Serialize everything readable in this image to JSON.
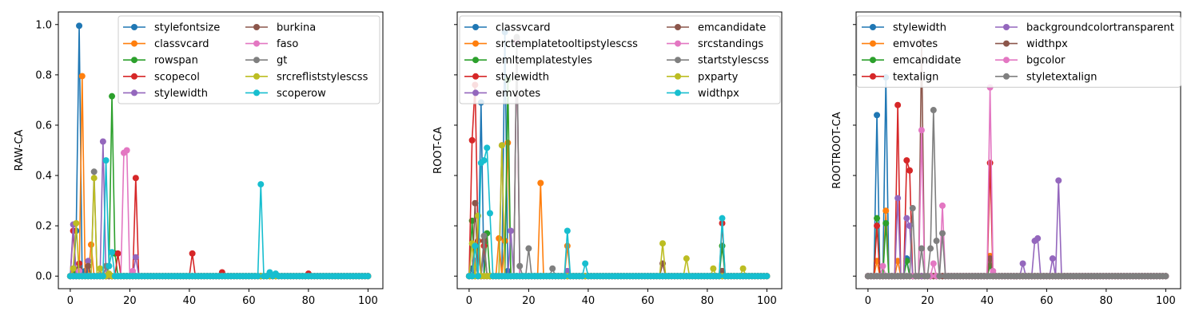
{
  "colors": [
    "#1f77b4",
    "#ff7f0e",
    "#2ca02c",
    "#d62728",
    "#9467bd",
    "#8c564b",
    "#e377c2",
    "#7f7f7f",
    "#bcbd22",
    "#17becf"
  ],
  "chart_data": [
    {
      "type": "line",
      "ylabel": "RAW-CA",
      "xlim": [
        -4,
        105
      ],
      "ylim": [
        -0.05,
        1.05
      ],
      "xticks": [
        0,
        20,
        40,
        60,
        80,
        100
      ],
      "yticks": [
        0.0,
        0.2,
        0.4,
        0.6,
        0.8,
        1.0
      ],
      "ytick_labels": [
        "0.0",
        "0.2",
        "0.4",
        "0.6",
        "0.8",
        "1.0"
      ],
      "legend_loc": "upper-right",
      "legend_cols": 2,
      "series": [
        {
          "name": "stylefontsize",
          "peaks": [
            [
              2,
              0.18
            ],
            [
              3,
              0.995
            ],
            [
              5,
              0.02
            ]
          ]
        },
        {
          "name": "classvcard",
          "peaks": [
            [
              1,
              0.02
            ],
            [
              4,
              0.795
            ],
            [
              7,
              0.125
            ]
          ]
        },
        {
          "name": "rowspan",
          "peaks": [
            [
              2,
              0.02
            ],
            [
              13,
              0.04
            ],
            [
              14,
              0.715
            ],
            [
              15,
              0.09
            ]
          ]
        },
        {
          "name": "scopecol",
          "peaks": [
            [
              1,
              0.18
            ],
            [
              3,
              0.05
            ],
            [
              16,
              0.09
            ],
            [
              22,
              0.39
            ],
            [
              41,
              0.09
            ],
            [
              51,
              0.015
            ],
            [
              80,
              0.01
            ]
          ]
        },
        {
          "name": "stylewidth",
          "peaks": [
            [
              1,
              0.205
            ],
            [
              6,
              0.06
            ],
            [
              11,
              0.535
            ],
            [
              22,
              0.075
            ]
          ]
        },
        {
          "name": "burkina",
          "peaks": [
            [
              3,
              0.03
            ],
            [
              6,
              0.04
            ]
          ]
        },
        {
          "name": "faso",
          "peaks": [
            [
              3,
              0.02
            ],
            [
              18,
              0.49
            ],
            [
              19,
              0.5
            ],
            [
              21,
              0.02
            ]
          ]
        },
        {
          "name": "gt",
          "peaks": [
            [
              8,
              0.415
            ],
            [
              12,
              0.04
            ]
          ]
        },
        {
          "name": "srcrefliststylescss",
          "peaks": [
            [
              1,
              0.03
            ],
            [
              2,
              0.21
            ],
            [
              8,
              0.39
            ],
            [
              10,
              0.03
            ],
            [
              13,
              0.01
            ]
          ]
        },
        {
          "name": "scoperow",
          "peaks": [
            [
              12,
              0.46
            ],
            [
              13,
              0.04
            ],
            [
              14,
              0.095
            ],
            [
              64,
              0.365
            ],
            [
              67,
              0.015
            ],
            [
              69,
              0.01
            ]
          ]
        }
      ]
    },
    {
      "type": "line",
      "ylabel": "ROOT-CA",
      "xlim": [
        -4,
        105
      ],
      "ylim": [
        -0.025,
        0.525
      ],
      "xticks": [
        0,
        20,
        40,
        60,
        80,
        100
      ],
      "yticks": [],
      "ytick_labels": [],
      "legend_loc": "upper-right",
      "legend_cols": 2,
      "series": [
        {
          "name": "classvcard",
          "peaks": [
            [
              1,
              0.015
            ],
            [
              4,
              0.345
            ],
            [
              12,
              0.485
            ],
            [
              13,
              0.01
            ]
          ]
        },
        {
          "name": "srctemplatetooltipstylescss",
          "peaks": [
            [
              10,
              0.075
            ],
            [
              12,
              0.07
            ],
            [
              13,
              0.265
            ],
            [
              24,
              0.185
            ],
            [
              33,
              0.06
            ]
          ]
        },
        {
          "name": "emltemplatestyles",
          "peaks": [
            [
              1,
              0.11
            ],
            [
              3,
              0.07
            ],
            [
              6,
              0.085
            ],
            [
              13,
              0.39
            ],
            [
              85,
              0.06
            ]
          ]
        },
        {
          "name": "stylewidth",
          "peaks": [
            [
              1,
              0.27
            ],
            [
              2,
              0.38
            ],
            [
              3,
              0.07
            ],
            [
              5,
              0.06
            ],
            [
              85,
              0.105
            ]
          ]
        },
        {
          "name": "emvotes",
          "peaks": [
            [
              2,
              0.03
            ],
            [
              11,
              0.26
            ],
            [
              14,
              0.09
            ],
            [
              33,
              0.01
            ]
          ]
        },
        {
          "name": "emcandidate",
          "peaks": [
            [
              2,
              0.145
            ],
            [
              5,
              0.07
            ],
            [
              16,
              0.47
            ],
            [
              65,
              0.025
            ],
            [
              85,
              0.01
            ]
          ]
        },
        {
          "name": "srcstandings",
          "peaks": [
            [
              16,
              0.465
            ]
          ]
        },
        {
          "name": "startstylescss",
          "peaks": [
            [
              5,
              0.08
            ],
            [
              16,
              0.475
            ],
            [
              17,
              0.02
            ],
            [
              20,
              0.055
            ],
            [
              28,
              0.015
            ]
          ]
        },
        {
          "name": "pxparty",
          "peaks": [
            [
              1,
              0.065
            ],
            [
              3,
              0.12
            ],
            [
              11,
              0.26
            ],
            [
              65,
              0.065
            ],
            [
              73,
              0.035
            ],
            [
              82,
              0.015
            ],
            [
              92,
              0.015
            ]
          ]
        },
        {
          "name": "widthpx",
          "peaks": [
            [
              2,
              0.06
            ],
            [
              4,
              0.225
            ],
            [
              5,
              0.23
            ],
            [
              6,
              0.255
            ],
            [
              7,
              0.125
            ],
            [
              33,
              0.09
            ],
            [
              39,
              0.025
            ],
            [
              85,
              0.115
            ]
          ]
        }
      ]
    },
    {
      "type": "line",
      "ylabel": "ROOTROOT-CA",
      "xlim": [
        -4,
        105
      ],
      "ylim": [
        -0.025,
        0.525
      ],
      "xticks": [
        0,
        20,
        40,
        60,
        80,
        100
      ],
      "yticks": [],
      "ytick_labels": [],
      "legend_loc": "upper-right",
      "legend_cols": 2,
      "series": [
        {
          "name": "stylewidth",
          "peaks": [
            [
              3,
              0.32
            ],
            [
              6,
              0.395
            ],
            [
              13,
              0.035
            ],
            [
              41,
              0.025
            ]
          ]
        },
        {
          "name": "emvotes",
          "peaks": [
            [
              3,
              0.03
            ],
            [
              6,
              0.13
            ],
            [
              10,
              0.03
            ],
            [
              41,
              0.04
            ]
          ]
        },
        {
          "name": "emcandidate",
          "peaks": [
            [
              3,
              0.115
            ],
            [
              6,
              0.105
            ],
            [
              13,
              0.03
            ],
            [
              41,
              0.02
            ]
          ]
        },
        {
          "name": "textalign",
          "peaks": [
            [
              3,
              0.1
            ],
            [
              10,
              0.34
            ],
            [
              13,
              0.23
            ],
            [
              14,
              0.21
            ],
            [
              41,
              0.225
            ]
          ]
        },
        {
          "name": "backgroundcolortransparent",
          "peaks": [
            [
              10,
              0.155
            ],
            [
              13,
              0.115
            ],
            [
              14,
              0.1
            ],
            [
              52,
              0.025
            ],
            [
              56,
              0.07
            ],
            [
              57,
              0.075
            ],
            [
              62,
              0.035
            ],
            [
              64,
              0.19
            ]
          ]
        },
        {
          "name": "widthpx",
          "peaks": [
            [
              18,
              0.465
            ],
            [
              41,
              0.035
            ]
          ]
        },
        {
          "name": "bgcolor",
          "peaks": [
            [
              5,
              0.02
            ],
            [
              18,
              0.29
            ],
            [
              22,
              0.025
            ],
            [
              25,
              0.14
            ],
            [
              41,
              0.375
            ],
            [
              42,
              0.01
            ]
          ]
        },
        {
          "name": "styletextalign",
          "peaks": [
            [
              15,
              0.135
            ],
            [
              18,
              0.055
            ],
            [
              21,
              0.055
            ],
            [
              22,
              0.33
            ],
            [
              23,
              0.07
            ],
            [
              25,
              0.085
            ]
          ]
        }
      ]
    }
  ]
}
